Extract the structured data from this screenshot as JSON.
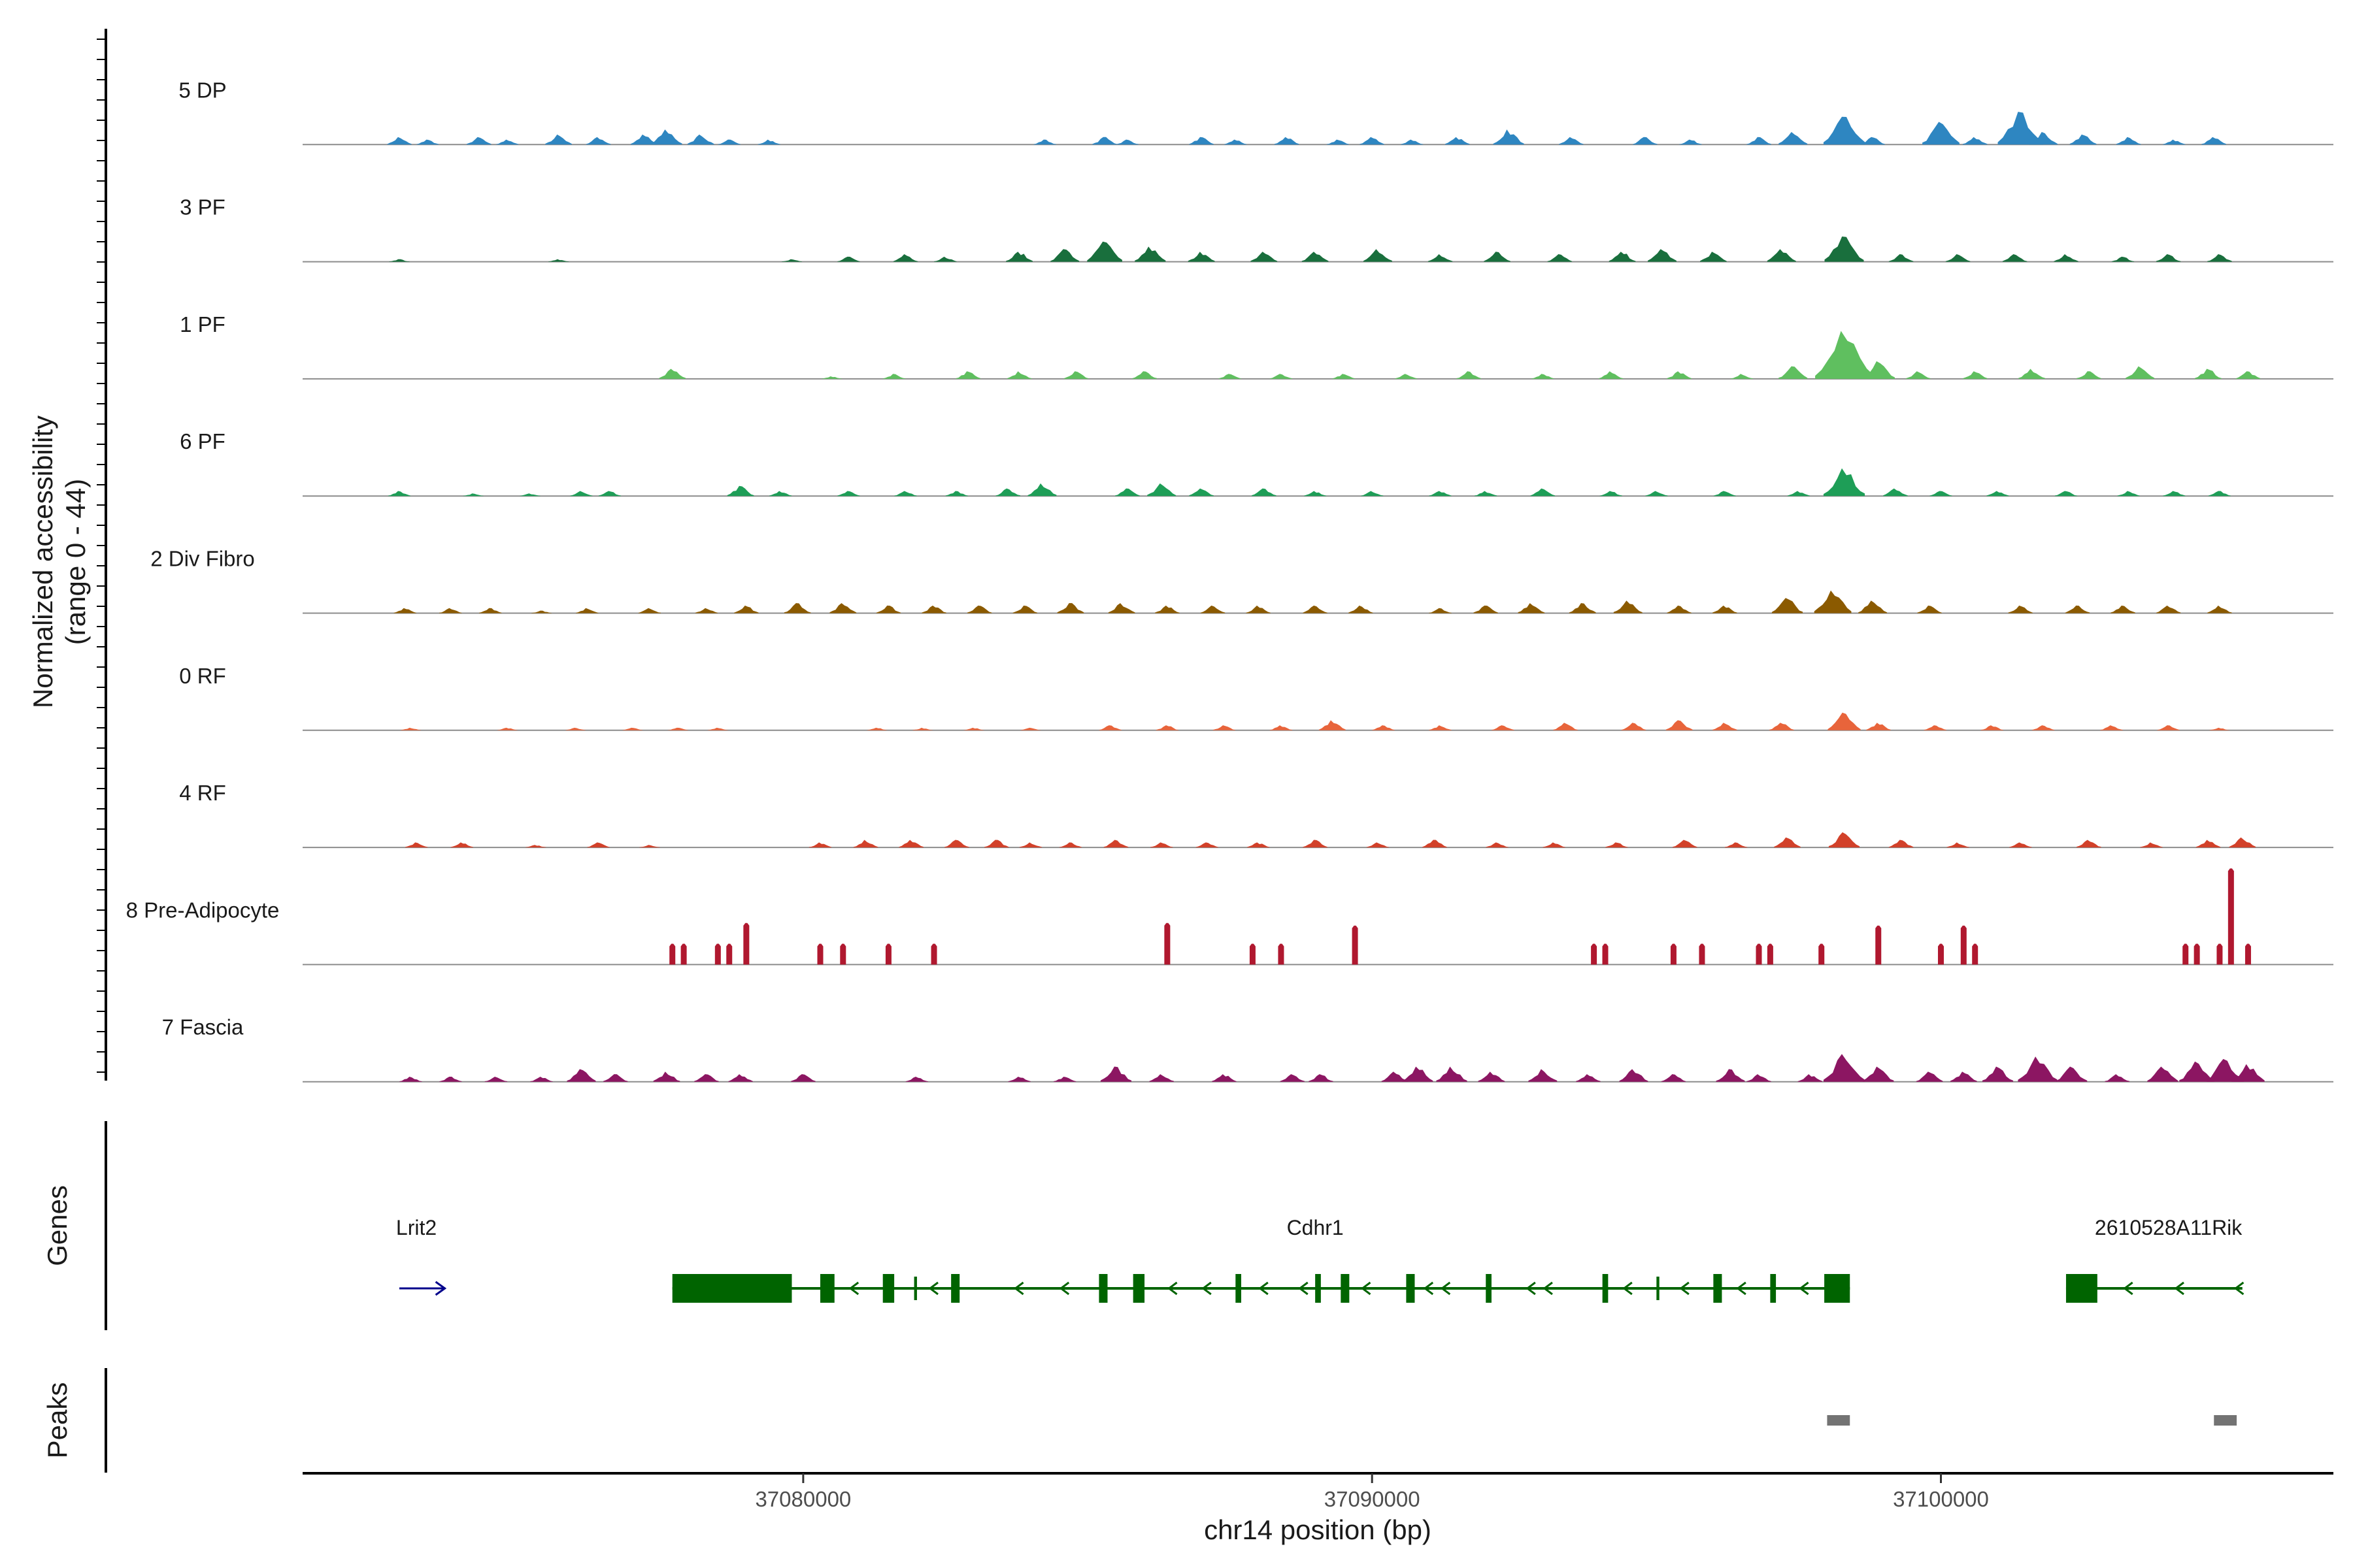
{
  "chart_data": {
    "type": "area",
    "title": "",
    "ylabel_line1": "Normalized accessibility",
    "ylabel_line2": "(range 0 - 44)",
    "xlabel": "chr14 position (bp)",
    "x_range": [
      37071200,
      37106900
    ],
    "y_range": [
      0,
      44
    ],
    "x_ticks": [
      37080000,
      37090000,
      37100000
    ],
    "x_tick_labels": [
      "37080000",
      "37090000",
      "37100000"
    ],
    "series": [
      {
        "name": "5 DP",
        "color": "#2E86C1",
        "peaks": [
          [
            37072900,
            3
          ],
          [
            37073400,
            2
          ],
          [
            37074300,
            3
          ],
          [
            37074800,
            2
          ],
          [
            37075700,
            4
          ],
          [
            37076400,
            3
          ],
          [
            37077200,
            4
          ],
          [
            37077600,
            6
          ],
          [
            37078200,
            4
          ],
          [
            37078700,
            2
          ],
          [
            37079400,
            2
          ],
          [
            37084250,
            2
          ],
          [
            37085300,
            3
          ],
          [
            37085700,
            2
          ],
          [
            37087000,
            3
          ],
          [
            37087600,
            2
          ],
          [
            37088500,
            3
          ],
          [
            37089400,
            2
          ],
          [
            37090000,
            3
          ],
          [
            37090700,
            2
          ],
          [
            37091500,
            3
          ],
          [
            37092400,
            6
          ],
          [
            37093500,
            3
          ],
          [
            37094800,
            3
          ],
          [
            37095600,
            2
          ],
          [
            37096800,
            3
          ],
          [
            37097400,
            5
          ],
          [
            37098300,
            11
          ],
          [
            37098800,
            3
          ],
          [
            37100000,
            9
          ],
          [
            37100600,
            3
          ],
          [
            37101400,
            13
          ],
          [
            37101800,
            5
          ],
          [
            37102500,
            4
          ],
          [
            37103300,
            3
          ],
          [
            37104100,
            2
          ],
          [
            37104800,
            3
          ]
        ]
      },
      {
        "name": "3 PF",
        "color": "#196F3D",
        "peaks": [
          [
            37072900,
            1
          ],
          [
            37075700,
            1
          ],
          [
            37079800,
            1
          ],
          [
            37080800,
            2
          ],
          [
            37081800,
            3
          ],
          [
            37082500,
            2
          ],
          [
            37083800,
            4
          ],
          [
            37084600,
            5
          ],
          [
            37085300,
            8
          ],
          [
            37086100,
            6
          ],
          [
            37087000,
            4
          ],
          [
            37088100,
            4
          ],
          [
            37089000,
            4
          ],
          [
            37090100,
            5
          ],
          [
            37091200,
            3
          ],
          [
            37092200,
            4
          ],
          [
            37093300,
            3
          ],
          [
            37094400,
            4
          ],
          [
            37095100,
            5
          ],
          [
            37096000,
            4
          ],
          [
            37097200,
            5
          ],
          [
            37098300,
            10
          ],
          [
            37099300,
            3
          ],
          [
            37100300,
            3
          ],
          [
            37101300,
            3
          ],
          [
            37102200,
            3
          ],
          [
            37103200,
            2
          ],
          [
            37104000,
            3
          ],
          [
            37104900,
            3
          ]
        ]
      },
      {
        "name": "1 PF",
        "color": "#5FBF5F",
        "peaks": [
          [
            37077700,
            4
          ],
          [
            37080500,
            1
          ],
          [
            37081600,
            2
          ],
          [
            37082900,
            3
          ],
          [
            37083800,
            3
          ],
          [
            37084800,
            3
          ],
          [
            37086000,
            3
          ],
          [
            37087500,
            2
          ],
          [
            37088400,
            2
          ],
          [
            37089500,
            2
          ],
          [
            37090600,
            2
          ],
          [
            37091700,
            3
          ],
          [
            37093000,
            2
          ],
          [
            37094200,
            3
          ],
          [
            37095400,
            3
          ],
          [
            37096500,
            2
          ],
          [
            37097400,
            5
          ],
          [
            37098300,
            19
          ],
          [
            37098900,
            7
          ],
          [
            37099600,
            3
          ],
          [
            37100600,
            3
          ],
          [
            37101600,
            4
          ],
          [
            37102600,
            3
          ],
          [
            37103500,
            5
          ],
          [
            37104700,
            4
          ],
          [
            37105400,
            3
          ]
        ]
      },
      {
        "name": "6 PF",
        "color": "#1E9E57",
        "peaks": [
          [
            37072900,
            2
          ],
          [
            37074200,
            1
          ],
          [
            37075200,
            1
          ],
          [
            37076100,
            2
          ],
          [
            37076600,
            2
          ],
          [
            37078900,
            4
          ],
          [
            37079600,
            2
          ],
          [
            37080800,
            2
          ],
          [
            37081800,
            2
          ],
          [
            37082700,
            2
          ],
          [
            37083600,
            3
          ],
          [
            37084200,
            5
          ],
          [
            37085700,
            3
          ],
          [
            37086300,
            5
          ],
          [
            37087000,
            3
          ],
          [
            37088100,
            3
          ],
          [
            37089000,
            2
          ],
          [
            37090000,
            2
          ],
          [
            37091200,
            2
          ],
          [
            37092000,
            2
          ],
          [
            37093000,
            3
          ],
          [
            37094200,
            2
          ],
          [
            37095000,
            2
          ],
          [
            37096200,
            2
          ],
          [
            37097500,
            2
          ],
          [
            37098300,
            11
          ],
          [
            37099200,
            3
          ],
          [
            37100000,
            2
          ],
          [
            37101000,
            2
          ],
          [
            37102200,
            2
          ],
          [
            37103300,
            2
          ],
          [
            37104100,
            2
          ],
          [
            37104900,
            2
          ]
        ]
      },
      {
        "name": "2 Div Fibro",
        "color": "#8B5A00",
        "peaks": [
          [
            37073000,
            2
          ],
          [
            37073800,
            2
          ],
          [
            37074500,
            2
          ],
          [
            37075400,
            1
          ],
          [
            37076200,
            2
          ],
          [
            37077300,
            2
          ],
          [
            37078300,
            2
          ],
          [
            37079000,
            3
          ],
          [
            37079900,
            4
          ],
          [
            37080700,
            4
          ],
          [
            37081500,
            3
          ],
          [
            37082300,
            3
          ],
          [
            37083100,
            3
          ],
          [
            37083900,
            3
          ],
          [
            37084700,
            4
          ],
          [
            37085600,
            4
          ],
          [
            37086400,
            3
          ],
          [
            37087200,
            3
          ],
          [
            37088000,
            3
          ],
          [
            37089000,
            3
          ],
          [
            37089800,
            3
          ],
          [
            37091200,
            2
          ],
          [
            37092000,
            3
          ],
          [
            37092800,
            4
          ],
          [
            37093700,
            4
          ],
          [
            37094500,
            5
          ],
          [
            37095400,
            3
          ],
          [
            37096200,
            3
          ],
          [
            37097300,
            6
          ],
          [
            37098100,
            9
          ],
          [
            37098800,
            5
          ],
          [
            37099800,
            3
          ],
          [
            37101400,
            3
          ],
          [
            37102400,
            3
          ],
          [
            37103200,
            3
          ],
          [
            37104000,
            3
          ],
          [
            37104900,
            3
          ]
        ]
      },
      {
        "name": "0 RF",
        "color": "#E8643B",
        "peaks": [
          [
            37073100,
            1
          ],
          [
            37074800,
            1
          ],
          [
            37076000,
            1
          ],
          [
            37077000,
            1
          ],
          [
            37077800,
            1
          ],
          [
            37078500,
            1
          ],
          [
            37081300,
            1
          ],
          [
            37082100,
            1
          ],
          [
            37083000,
            1
          ],
          [
            37084000,
            1
          ],
          [
            37085400,
            2
          ],
          [
            37086400,
            2
          ],
          [
            37087400,
            2
          ],
          [
            37088400,
            2
          ],
          [
            37089300,
            4
          ],
          [
            37090200,
            2
          ],
          [
            37091200,
            2
          ],
          [
            37092300,
            2
          ],
          [
            37093400,
            3
          ],
          [
            37094600,
            3
          ],
          [
            37095400,
            4
          ],
          [
            37096200,
            3
          ],
          [
            37097200,
            3
          ],
          [
            37098300,
            7
          ],
          [
            37098900,
            3
          ],
          [
            37099900,
            2
          ],
          [
            37100900,
            2
          ],
          [
            37101800,
            2
          ],
          [
            37103000,
            2
          ],
          [
            37104000,
            2
          ],
          [
            37104900,
            1
          ]
        ]
      },
      {
        "name": "4 RF",
        "color": "#D2412A",
        "peaks": [
          [
            37073200,
            2
          ],
          [
            37074000,
            2
          ],
          [
            37075300,
            1
          ],
          [
            37076400,
            2
          ],
          [
            37077300,
            1
          ],
          [
            37080300,
            2
          ],
          [
            37081100,
            3
          ],
          [
            37081900,
            3
          ],
          [
            37082700,
            3
          ],
          [
            37083400,
            3
          ],
          [
            37084000,
            2
          ],
          [
            37084700,
            2
          ],
          [
            37085500,
            3
          ],
          [
            37086300,
            2
          ],
          [
            37087100,
            2
          ],
          [
            37088000,
            2
          ],
          [
            37089000,
            3
          ],
          [
            37090100,
            2
          ],
          [
            37091100,
            3
          ],
          [
            37092200,
            2
          ],
          [
            37093200,
            2
          ],
          [
            37094300,
            2
          ],
          [
            37095500,
            3
          ],
          [
            37096400,
            2
          ],
          [
            37097300,
            4
          ],
          [
            37098300,
            6
          ],
          [
            37099300,
            3
          ],
          [
            37100300,
            2
          ],
          [
            37101400,
            2
          ],
          [
            37102600,
            3
          ],
          [
            37103700,
            2
          ],
          [
            37104700,
            3
          ],
          [
            37105300,
            4
          ]
        ]
      },
      {
        "name": "8 Pre-Adipocyte",
        "color": "#B0182F",
        "peaks": [
          [
            37077700,
            7
          ],
          [
            37077900,
            7
          ],
          [
            37078500,
            7
          ],
          [
            37078700,
            7
          ],
          [
            37079000,
            15
          ],
          [
            37080300,
            7
          ],
          [
            37080700,
            7
          ],
          [
            37081500,
            7
          ],
          [
            37082300,
            7
          ],
          [
            37086400,
            15
          ],
          [
            37087900,
            7
          ],
          [
            37088400,
            7
          ],
          [
            37089700,
            14
          ],
          [
            37093900,
            7
          ],
          [
            37094100,
            7
          ],
          [
            37095300,
            7
          ],
          [
            37095800,
            7
          ],
          [
            37096800,
            7
          ],
          [
            37097000,
            7
          ],
          [
            37097900,
            7
          ],
          [
            37098900,
            14
          ],
          [
            37100000,
            7
          ],
          [
            37100400,
            14
          ],
          [
            37100600,
            7
          ],
          [
            37104300,
            7
          ],
          [
            37104500,
            7
          ],
          [
            37104900,
            7
          ],
          [
            37105100,
            36
          ],
          [
            37105400,
            7
          ]
        ]
      },
      {
        "name": "7 Fascia",
        "color": "#8C1662",
        "peaks": [
          [
            37073100,
            2
          ],
          [
            37073800,
            2
          ],
          [
            37074600,
            2
          ],
          [
            37075400,
            2
          ],
          [
            37076100,
            5
          ],
          [
            37076700,
            3
          ],
          [
            37077600,
            4
          ],
          [
            37078300,
            3
          ],
          [
            37078900,
            3
          ],
          [
            37080000,
            3
          ],
          [
            37082000,
            2
          ],
          [
            37083800,
            2
          ],
          [
            37084600,
            2
          ],
          [
            37085500,
            6
          ],
          [
            37086300,
            3
          ],
          [
            37087400,
            3
          ],
          [
            37088600,
            3
          ],
          [
            37089100,
            3
          ],
          [
            37090400,
            4
          ],
          [
            37090800,
            6
          ],
          [
            37091400,
            6
          ],
          [
            37092100,
            4
          ],
          [
            37093000,
            5
          ],
          [
            37093800,
            3
          ],
          [
            37094600,
            5
          ],
          [
            37095300,
            3
          ],
          [
            37096300,
            5
          ],
          [
            37096800,
            3
          ],
          [
            37097700,
            3
          ],
          [
            37098300,
            11
          ],
          [
            37098900,
            6
          ],
          [
            37099800,
            4
          ],
          [
            37100400,
            4
          ],
          [
            37101000,
            6
          ],
          [
            37101700,
            10
          ],
          [
            37102300,
            6
          ],
          [
            37103100,
            3
          ],
          [
            37103900,
            6
          ],
          [
            37104500,
            8
          ],
          [
            37105000,
            9
          ],
          [
            37105400,
            7
          ]
        ]
      }
    ],
    "genes": {
      "title": "Genes",
      "labels": [
        {
          "name": "Lrit2",
          "x": 37073200
        },
        {
          "name": "Cdhr1",
          "x": 37089000
        },
        {
          "name": "2610528A11Rik",
          "x": 37104000
        }
      ]
    },
    "peaks_track": {
      "title": "Peaks",
      "regions": [
        [
          37098000,
          37098400
        ],
        [
          37104800,
          37105200
        ]
      ]
    }
  }
}
